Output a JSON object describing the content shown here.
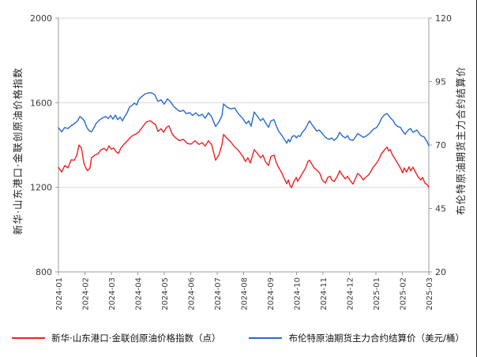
{
  "chart_data": {
    "type": "line",
    "title": "",
    "grid": "horizontal",
    "legend_position": "bottom",
    "style": {
      "grid_color": "#d9d9d9",
      "axis_color": "#9b9b9b",
      "tick_text_color": "#3a3a3a",
      "background": "#ffffff"
    },
    "x_axis": {
      "tick_labels": [
        "2024-01",
        "2024-02",
        "2024-03",
        "2024-04",
        "2024-05",
        "2024-06",
        "2024-07",
        "2024-08",
        "2024-09",
        "2024-10",
        "2024-11",
        "2024-12",
        "2025-01",
        "2025-02",
        "2025-03"
      ]
    },
    "left_axis": {
      "label": "新华·山东港口·金联创原油价格指数",
      "min": 800,
      "max": 2000,
      "ticks": [
        800,
        1200,
        1600,
        2000
      ]
    },
    "right_axis": {
      "label": "布伦特原油期货主力合约结算价",
      "min": 20,
      "max": 120,
      "ticks": [
        20,
        45,
        70,
        95,
        120
      ]
    },
    "series": [
      {
        "name": "新华·山东港口·金联创原油价格指数（点）",
        "axis": "left",
        "color": "#ee2022",
        "points": [
          [
            0.0,
            1295
          ],
          [
            0.12,
            1272
          ],
          [
            0.24,
            1303
          ],
          [
            0.36,
            1292
          ],
          [
            0.48,
            1330
          ],
          [
            0.6,
            1328
          ],
          [
            0.69,
            1350
          ],
          [
            0.78,
            1400
          ],
          [
            0.87,
            1386
          ],
          [
            0.96,
            1315
          ],
          [
            1.04,
            1290
          ],
          [
            1.1,
            1278
          ],
          [
            1.19,
            1290
          ],
          [
            1.25,
            1340
          ],
          [
            1.37,
            1352
          ],
          [
            1.49,
            1358
          ],
          [
            1.61,
            1378
          ],
          [
            1.73,
            1384
          ],
          [
            1.82,
            1372
          ],
          [
            1.91,
            1396
          ],
          [
            2.0,
            1380
          ],
          [
            2.09,
            1386
          ],
          [
            2.18,
            1368
          ],
          [
            2.27,
            1360
          ],
          [
            2.36,
            1386
          ],
          [
            2.45,
            1400
          ],
          [
            2.57,
            1415
          ],
          [
            2.69,
            1432
          ],
          [
            2.81,
            1445
          ],
          [
            2.93,
            1452
          ],
          [
            3.04,
            1462
          ],
          [
            3.16,
            1482
          ],
          [
            3.31,
            1508
          ],
          [
            3.46,
            1515
          ],
          [
            3.58,
            1504
          ],
          [
            3.67,
            1497
          ],
          [
            3.76,
            1464
          ],
          [
            3.88,
            1477
          ],
          [
            3.97,
            1460
          ],
          [
            4.09,
            1484
          ],
          [
            4.18,
            1490
          ],
          [
            4.3,
            1452
          ],
          [
            4.42,
            1435
          ],
          [
            4.57,
            1421
          ],
          [
            4.72,
            1427
          ],
          [
            4.87,
            1408
          ],
          [
            5.01,
            1404
          ],
          [
            5.16,
            1420
          ],
          [
            5.31,
            1403
          ],
          [
            5.43,
            1411
          ],
          [
            5.55,
            1395
          ],
          [
            5.67,
            1420
          ],
          [
            5.79,
            1402
          ],
          [
            5.94,
            1328
          ],
          [
            6.06,
            1352
          ],
          [
            6.18,
            1400
          ],
          [
            6.24,
            1450
          ],
          [
            6.36,
            1433
          ],
          [
            6.51,
            1415
          ],
          [
            6.66,
            1391
          ],
          [
            6.81,
            1373
          ],
          [
            6.96,
            1348
          ],
          [
            7.07,
            1322
          ],
          [
            7.16,
            1340
          ],
          [
            7.25,
            1315
          ],
          [
            7.4,
            1378
          ],
          [
            7.52,
            1360
          ],
          [
            7.64,
            1340
          ],
          [
            7.73,
            1352
          ],
          [
            7.82,
            1322
          ],
          [
            7.94,
            1303
          ],
          [
            8.03,
            1346
          ],
          [
            8.15,
            1352
          ],
          [
            8.24,
            1315
          ],
          [
            8.33,
            1291
          ],
          [
            8.45,
            1266
          ],
          [
            8.54,
            1240
          ],
          [
            8.63,
            1217
          ],
          [
            8.69,
            1235
          ],
          [
            8.75,
            1210
          ],
          [
            8.81,
            1198
          ],
          [
            8.9,
            1228
          ],
          [
            8.99,
            1247
          ],
          [
            9.04,
            1228
          ],
          [
            9.13,
            1247
          ],
          [
            9.22,
            1266
          ],
          [
            9.34,
            1291
          ],
          [
            9.43,
            1322
          ],
          [
            9.49,
            1328
          ],
          [
            9.58,
            1310
          ],
          [
            9.67,
            1291
          ],
          [
            9.79,
            1278
          ],
          [
            9.88,
            1266
          ],
          [
            9.97,
            1235
          ],
          [
            10.09,
            1220
          ],
          [
            10.18,
            1247
          ],
          [
            10.27,
            1252
          ],
          [
            10.33,
            1235
          ],
          [
            10.42,
            1228
          ],
          [
            10.54,
            1252
          ],
          [
            10.63,
            1278
          ],
          [
            10.72,
            1260
          ],
          [
            10.84,
            1240
          ],
          [
            10.93,
            1252
          ],
          [
            11.01,
            1235
          ],
          [
            11.13,
            1215
          ],
          [
            11.22,
            1240
          ],
          [
            11.31,
            1266
          ],
          [
            11.43,
            1252
          ],
          [
            11.52,
            1235
          ],
          [
            11.61,
            1247
          ],
          [
            11.73,
            1260
          ],
          [
            11.82,
            1278
          ],
          [
            11.91,
            1297
          ],
          [
            12.03,
            1315
          ],
          [
            12.12,
            1334
          ],
          [
            12.21,
            1359
          ],
          [
            12.33,
            1378
          ],
          [
            12.42,
            1390
          ],
          [
            12.48,
            1372
          ],
          [
            12.54,
            1378
          ],
          [
            12.63,
            1352
          ],
          [
            12.72,
            1335
          ],
          [
            12.81,
            1315
          ],
          [
            12.93,
            1290
          ],
          [
            13.01,
            1268
          ],
          [
            13.07,
            1291
          ],
          [
            13.16,
            1272
          ],
          [
            13.25,
            1297
          ],
          [
            13.31,
            1278
          ],
          [
            13.4,
            1295
          ],
          [
            13.52,
            1266
          ],
          [
            13.61,
            1247
          ],
          [
            13.7,
            1235
          ],
          [
            13.76,
            1247
          ],
          [
            13.85,
            1220
          ],
          [
            13.94,
            1212
          ],
          [
            14.0,
            1200
          ]
        ]
      },
      {
        "name": "布伦特原油期货主力合约结算价（美元/桶）",
        "axis": "right",
        "color": "#2668cf",
        "points": [
          [
            0.0,
            76.8
          ],
          [
            0.12,
            75.2
          ],
          [
            0.24,
            76.9
          ],
          [
            0.36,
            76.5
          ],
          [
            0.48,
            77.6
          ],
          [
            0.6,
            78.4
          ],
          [
            0.72,
            79.5
          ],
          [
            0.81,
            81.2
          ],
          [
            0.9,
            80.5
          ],
          [
            0.99,
            79.3
          ],
          [
            1.07,
            77.0
          ],
          [
            1.16,
            75.6
          ],
          [
            1.25,
            75.2
          ],
          [
            1.34,
            76.8
          ],
          [
            1.43,
            78.6
          ],
          [
            1.55,
            79.8
          ],
          [
            1.67,
            80.7
          ],
          [
            1.79,
            81.2
          ],
          [
            1.88,
            80.4
          ],
          [
            1.97,
            81.6
          ],
          [
            2.06,
            80.2
          ],
          [
            2.15,
            81.8
          ],
          [
            2.24,
            80.0
          ],
          [
            2.33,
            81.0
          ],
          [
            2.42,
            79.5
          ],
          [
            2.51,
            81.3
          ],
          [
            2.6,
            82.8
          ],
          [
            2.69,
            85.0
          ],
          [
            2.78,
            85.6
          ],
          [
            2.87,
            86.5
          ],
          [
            2.96,
            85.8
          ],
          [
            3.04,
            88.0
          ],
          [
            3.16,
            89.2
          ],
          [
            3.28,
            90.2
          ],
          [
            3.4,
            90.5
          ],
          [
            3.52,
            90.6
          ],
          [
            3.64,
            89.8
          ],
          [
            3.76,
            87.2
          ],
          [
            3.88,
            87.8
          ],
          [
            4.0,
            86.1
          ],
          [
            4.12,
            88.2
          ],
          [
            4.24,
            87.0
          ],
          [
            4.36,
            85.2
          ],
          [
            4.48,
            84.0
          ],
          [
            4.6,
            83.2
          ],
          [
            4.72,
            83.7
          ],
          [
            4.84,
            82.3
          ],
          [
            4.96,
            82.8
          ],
          [
            5.07,
            81.6
          ],
          [
            5.19,
            82.7
          ],
          [
            5.31,
            81.5
          ],
          [
            5.43,
            82.1
          ],
          [
            5.55,
            80.6
          ],
          [
            5.67,
            82.7
          ],
          [
            5.79,
            81.1
          ],
          [
            5.94,
            77.3
          ],
          [
            6.06,
            79.0
          ],
          [
            6.18,
            81.5
          ],
          [
            6.24,
            86.2
          ],
          [
            6.36,
            85.0
          ],
          [
            6.51,
            84.2
          ],
          [
            6.66,
            84.6
          ],
          [
            6.81,
            82.2
          ],
          [
            6.96,
            80.5
          ],
          [
            7.1,
            78.4
          ],
          [
            7.19,
            79.5
          ],
          [
            7.28,
            77.4
          ],
          [
            7.4,
            83.0
          ],
          [
            7.52,
            81.3
          ],
          [
            7.64,
            79.6
          ],
          [
            7.73,
            80.5
          ],
          [
            7.85,
            78.4
          ],
          [
            7.94,
            77.0
          ],
          [
            8.03,
            79.5
          ],
          [
            8.15,
            80.0
          ],
          [
            8.24,
            77.4
          ],
          [
            8.33,
            75.3
          ],
          [
            8.45,
            73.7
          ],
          [
            8.54,
            72.2
          ],
          [
            8.63,
            70.7
          ],
          [
            8.69,
            72.2
          ],
          [
            8.75,
            71.2
          ],
          [
            8.84,
            73.4
          ],
          [
            8.93,
            73.7
          ],
          [
            8.99,
            72.8
          ],
          [
            9.07,
            73.7
          ],
          [
            9.13,
            73.4
          ],
          [
            9.22,
            75.0
          ],
          [
            9.34,
            76.5
          ],
          [
            9.43,
            78.4
          ],
          [
            9.49,
            79.5
          ],
          [
            9.58,
            78.1
          ],
          [
            9.67,
            76.9
          ],
          [
            9.76,
            75.5
          ],
          [
            9.85,
            75.9
          ],
          [
            9.94,
            75.0
          ],
          [
            10.03,
            73.8
          ],
          [
            10.12,
            72.8
          ],
          [
            10.24,
            72.2
          ],
          [
            10.33,
            72.8
          ],
          [
            10.42,
            71.8
          ],
          [
            10.54,
            73.0
          ],
          [
            10.63,
            75.0
          ],
          [
            10.72,
            73.7
          ],
          [
            10.84,
            72.8
          ],
          [
            10.93,
            73.7
          ],
          [
            11.01,
            72.2
          ],
          [
            11.13,
            71.8
          ],
          [
            11.22,
            73.0
          ],
          [
            11.31,
            74.5
          ],
          [
            11.43,
            73.7
          ],
          [
            11.52,
            73.0
          ],
          [
            11.61,
            73.4
          ],
          [
            11.73,
            74.3
          ],
          [
            11.82,
            75.3
          ],
          [
            11.91,
            76.3
          ],
          [
            12.03,
            76.9
          ],
          [
            12.12,
            78.4
          ],
          [
            12.21,
            80.5
          ],
          [
            12.33,
            82.0
          ],
          [
            12.42,
            82.4
          ],
          [
            12.51,
            81.2
          ],
          [
            12.57,
            80.5
          ],
          [
            12.66,
            79.5
          ],
          [
            12.72,
            78.3
          ],
          [
            12.81,
            77.4
          ],
          [
            12.93,
            76.9
          ],
          [
            13.01,
            75.5
          ],
          [
            13.1,
            74.3
          ],
          [
            13.22,
            75.9
          ],
          [
            13.31,
            76.5
          ],
          [
            13.4,
            75.0
          ],
          [
            13.46,
            75.3
          ],
          [
            13.55,
            75.9
          ],
          [
            13.61,
            75.0
          ],
          [
            13.7,
            73.7
          ],
          [
            13.82,
            73.2
          ],
          [
            13.88,
            72.2
          ],
          [
            13.94,
            71.2
          ],
          [
            14.0,
            69.7
          ]
        ]
      }
    ]
  },
  "legend": {
    "item1": "新华·山东港口·金联创原油价格指数（点）",
    "item2": "布伦特原油期货主力合约结算价（美元/桶）"
  }
}
